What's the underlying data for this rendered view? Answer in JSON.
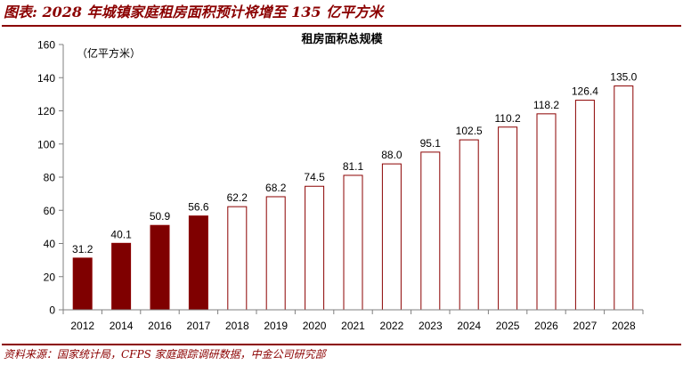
{
  "figure_title": "图表: 2028 年城镇家庭租房面积预计将增至 135 亿平方米",
  "source_note": "资料来源：国家统计局，CFPS 家庭跟踪调研数据，中金公司研究部",
  "colors": {
    "accent": "#8b0000",
    "actual_fill": "#7f0000",
    "forecast_fill": "#ffffff",
    "bar_outline": "#8b0000"
  },
  "chart_data": {
    "type": "bar",
    "title": "租房面积总规模",
    "unit_label": "（亿平方米）",
    "categories": [
      "2012",
      "2014",
      "2016",
      "2017",
      "2018",
      "2019",
      "2020",
      "2021",
      "2022",
      "2023",
      "2024",
      "2025",
      "2026",
      "2027",
      "2028"
    ],
    "values": [
      31.2,
      40.1,
      50.9,
      56.6,
      62.2,
      68.2,
      74.5,
      81.1,
      88.0,
      95.1,
      102.5,
      110.2,
      118.2,
      126.4,
      135.0
    ],
    "value_labels": [
      "31.2",
      "40.1",
      "50.9",
      "56.6",
      "62.2",
      "68.2",
      "74.5",
      "81.1",
      "88.0",
      "95.1",
      "102.5",
      "110.2",
      "118.2",
      "126.4",
      "135.0"
    ],
    "bar_style": [
      "filled",
      "filled",
      "filled",
      "filled",
      "outline",
      "outline",
      "outline",
      "outline",
      "outline",
      "outline",
      "outline",
      "outline",
      "outline",
      "outline",
      "outline"
    ],
    "ylim": [
      0,
      160
    ],
    "yticks": [
      0,
      20,
      40,
      60,
      80,
      100,
      120,
      140,
      160
    ],
    "ytick_labels": [
      "0",
      "20",
      "40",
      "60",
      "80",
      "100",
      "120",
      "140",
      "160"
    ],
    "grid": false,
    "legend": "none"
  }
}
